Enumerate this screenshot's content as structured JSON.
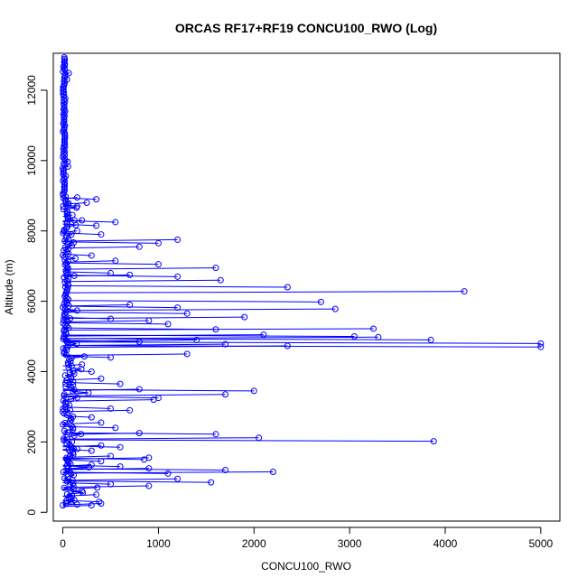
{
  "chart_data": {
    "type": "scatter",
    "title": "ORCAS RF17+RF19 CONCU100_RWO (Log)",
    "xlabel": "CONCU100_RWO",
    "ylabel": "Altitude (m)",
    "xlim": [
      -100,
      5200
    ],
    "ylim": [
      -250,
      13050
    ],
    "x_ticks": [
      0,
      1000,
      2000,
      3000,
      4000,
      5000
    ],
    "y_ticks": [
      0,
      2000,
      4000,
      6000,
      8000,
      10000,
      12000
    ],
    "grid": false,
    "legend": "none",
    "series": [
      {
        "color": "#0000ff",
        "marker": "open-circle",
        "connected": true,
        "points": [
          [
            300,
            200
          ],
          [
            150,
            220
          ],
          [
            400,
            250
          ],
          [
            380,
            300
          ],
          [
            120,
            350
          ],
          [
            60,
            420
          ],
          [
            350,
            500
          ],
          [
            200,
            600
          ],
          [
            360,
            700
          ],
          [
            500,
            800
          ],
          [
            900,
            750
          ],
          [
            1550,
            850
          ],
          [
            1200,
            950
          ],
          [
            1100,
            1100
          ],
          [
            2200,
            1150
          ],
          [
            1700,
            1200
          ],
          [
            900,
            1250
          ],
          [
            600,
            1300
          ],
          [
            300,
            1350
          ],
          [
            400,
            1450
          ],
          [
            900,
            1550
          ],
          [
            850,
            1500
          ],
          [
            500,
            1600
          ],
          [
            300,
            1750
          ],
          [
            150,
            1800
          ],
          [
            600,
            1850
          ],
          [
            400,
            1900
          ],
          [
            3880,
            2020
          ],
          [
            2050,
            2120
          ],
          [
            1600,
            2220
          ],
          [
            800,
            2250
          ],
          [
            550,
            2400
          ],
          [
            400,
            2550
          ],
          [
            300,
            2700
          ],
          [
            700,
            2900
          ],
          [
            500,
            2950
          ],
          [
            950,
            3200
          ],
          [
            1000,
            3250
          ],
          [
            1700,
            3350
          ],
          [
            2000,
            3450
          ],
          [
            800,
            3500
          ],
          [
            600,
            3650
          ],
          [
            400,
            3800
          ],
          [
            300,
            4000
          ],
          [
            200,
            4200
          ],
          [
            500,
            4400
          ],
          [
            1300,
            4500
          ],
          [
            5000,
            4700
          ],
          [
            2350,
            4730
          ],
          [
            5000,
            4800
          ],
          [
            1700,
            4780
          ],
          [
            800,
            4850
          ],
          [
            1400,
            4900
          ],
          [
            3850,
            4900
          ],
          [
            3300,
            4980
          ],
          [
            3050,
            5000
          ],
          [
            2100,
            5050
          ],
          [
            1600,
            5200
          ],
          [
            3250,
            5220
          ],
          [
            1100,
            5350
          ],
          [
            900,
            5450
          ],
          [
            500,
            5500
          ],
          [
            1900,
            5550
          ],
          [
            1300,
            5650
          ],
          [
            2850,
            5780
          ],
          [
            1200,
            5820
          ],
          [
            700,
            5900
          ],
          [
            2700,
            5980
          ],
          [
            4200,
            6280
          ],
          [
            2350,
            6400
          ],
          [
            1650,
            6600
          ],
          [
            1200,
            6700
          ],
          [
            700,
            6750
          ],
          [
            500,
            6800
          ],
          [
            1600,
            6950
          ],
          [
            1000,
            7050
          ],
          [
            550,
            7150
          ],
          [
            300,
            7300
          ],
          [
            800,
            7550
          ],
          [
            1000,
            7650
          ],
          [
            1200,
            7750
          ],
          [
            400,
            7900
          ],
          [
            150,
            8000
          ],
          [
            350,
            8150
          ],
          [
            200,
            8300
          ],
          [
            550,
            8250
          ],
          [
            100,
            8450
          ],
          [
            150,
            8700
          ],
          [
            250,
            8800
          ],
          [
            350,
            8900
          ],
          [
            150,
            8950
          ]
        ]
      }
    ]
  }
}
